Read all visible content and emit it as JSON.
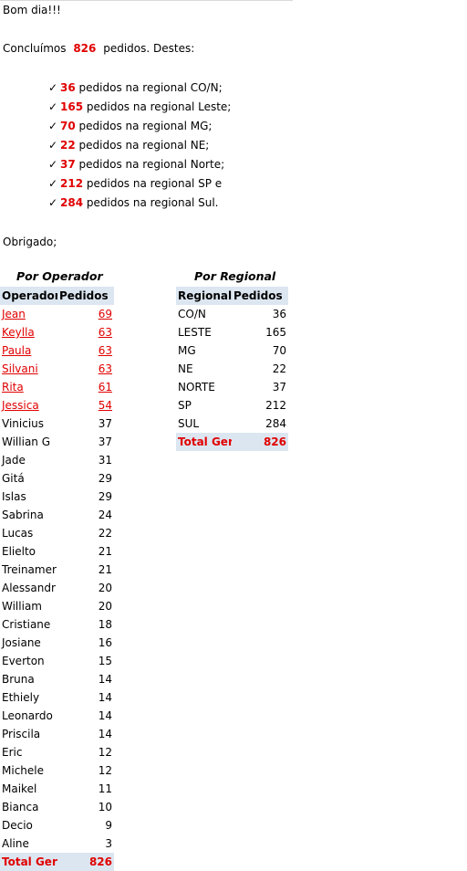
{
  "greeting": "Bom dia!!!",
  "summary": {
    "prefix": "Concluímos",
    "total": "826",
    "suffix": "pedidos. Destes:"
  },
  "bullets": [
    {
      "value": "36",
      "text": "pedidos na regional CO/N;"
    },
    {
      "value": "165",
      "text": "pedidos na regional Leste;"
    },
    {
      "value": "70",
      "text": "pedidos na regional MG;"
    },
    {
      "value": "22",
      "text": "pedidos na regional NE;"
    },
    {
      "value": "37",
      "text": "pedidos na regional Norte;"
    },
    {
      "value": "212",
      "text": "pedidos na regional SP e"
    },
    {
      "value": "284",
      "text": "pedidos na regional Sul."
    }
  ],
  "closing": "Obrigado;",
  "operator_table": {
    "title": "Por Operador",
    "headers": [
      "Operador",
      "Pedidos"
    ],
    "rows": [
      {
        "name": "Jean",
        "value": "69",
        "highlight": true
      },
      {
        "name": "Keylla",
        "value": "63",
        "highlight": true
      },
      {
        "name": "Paula",
        "value": "63",
        "highlight": true
      },
      {
        "name": "Silvani",
        "value": "63",
        "highlight": true
      },
      {
        "name": "Rita",
        "value": "61",
        "highlight": true
      },
      {
        "name": "Jessica",
        "value": "54",
        "highlight": true
      },
      {
        "name": "Vinicius",
        "value": "37",
        "highlight": false
      },
      {
        "name": "Willian G",
        "value": "37",
        "highlight": false
      },
      {
        "name": "Jade",
        "value": "31",
        "highlight": false
      },
      {
        "name": "Gitá",
        "value": "29",
        "highlight": false
      },
      {
        "name": "Islas",
        "value": "29",
        "highlight": false
      },
      {
        "name": "Sabrina",
        "value": "24",
        "highlight": false
      },
      {
        "name": "Lucas",
        "value": "22",
        "highlight": false
      },
      {
        "name": "Elielto",
        "value": "21",
        "highlight": false
      },
      {
        "name": "Treinamer",
        "value": "21",
        "highlight": false
      },
      {
        "name": "Alessandr",
        "value": "20",
        "highlight": false
      },
      {
        "name": "William",
        "value": "20",
        "highlight": false
      },
      {
        "name": "Cristiane",
        "value": "18",
        "highlight": false
      },
      {
        "name": "Josiane",
        "value": "16",
        "highlight": false
      },
      {
        "name": "Everton",
        "value": "15",
        "highlight": false
      },
      {
        "name": "Bruna",
        "value": "14",
        "highlight": false
      },
      {
        "name": "Ethiely",
        "value": "14",
        "highlight": false
      },
      {
        "name": "Leonardo",
        "value": "14",
        "highlight": false
      },
      {
        "name": "Priscila",
        "value": "14",
        "highlight": false
      },
      {
        "name": "Eric",
        "value": "12",
        "highlight": false
      },
      {
        "name": "Michele",
        "value": "12",
        "highlight": false
      },
      {
        "name": "Maikel",
        "value": "11",
        "highlight": false
      },
      {
        "name": "Bianca",
        "value": "10",
        "highlight": false
      },
      {
        "name": "Decio",
        "value": "9",
        "highlight": false
      },
      {
        "name": "Aline",
        "value": "3",
        "highlight": false
      }
    ],
    "total": {
      "label": "Total Gera",
      "value": "826"
    }
  },
  "regional_table": {
    "title": "Por Regional",
    "headers": [
      "Regional",
      "Pedidos"
    ],
    "rows": [
      {
        "name": "CO/N",
        "value": "36"
      },
      {
        "name": "LESTE",
        "value": "165"
      },
      {
        "name": "MG",
        "value": "70"
      },
      {
        "name": "NE",
        "value": "22"
      },
      {
        "name": "NORTE",
        "value": "37"
      },
      {
        "name": "SP",
        "value": "212"
      },
      {
        "name": "SUL",
        "value": "284"
      }
    ],
    "total": {
      "label": "Total Gera",
      "value": "826"
    }
  },
  "icons": {
    "bullet": "check-icon"
  },
  "colors": {
    "accent": "#e00000",
    "header_bg": "#dce6f1"
  }
}
